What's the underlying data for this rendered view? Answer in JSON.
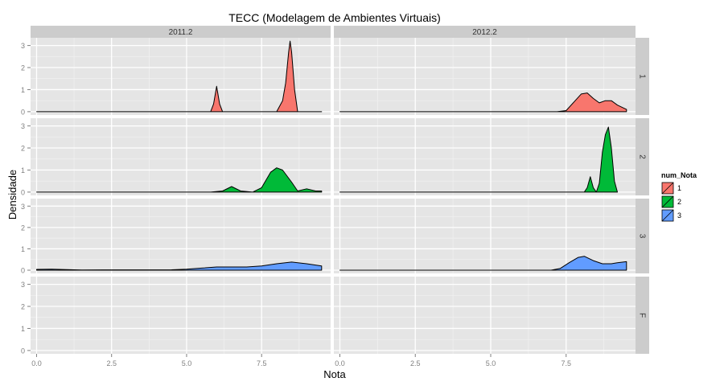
{
  "chart_data": {
    "type": "area",
    "title": "TECC (Modelagem de Ambientes Virtuais)",
    "xlabel": "Nota",
    "ylabel": "Densidade",
    "xlim": [
      -0.2,
      9.8
    ],
    "ylim": [
      -0.15,
      3.35
    ],
    "x_ticks": [
      0,
      2.5,
      5,
      7.5
    ],
    "x_tick_labels": [
      "0.0",
      "2.5",
      "5.0",
      "7.5"
    ],
    "y_ticks": [
      0,
      1,
      2,
      3
    ],
    "y_tick_labels": [
      "0",
      "1",
      "2",
      "3"
    ],
    "grid": true,
    "column_facets": [
      "2011.2",
      "2012.2"
    ],
    "row_facets": [
      "1",
      "2",
      "3",
      "F"
    ],
    "legend": {
      "title": "num_Nota",
      "placement": "right",
      "items": [
        {
          "label": "1",
          "color": "#F8766D"
        },
        {
          "label": "2",
          "color": "#00BA38"
        },
        {
          "label": "3",
          "color": "#619CFF"
        }
      ]
    },
    "panels": [
      {
        "column": "2011.2",
        "row": "1",
        "series": "1",
        "color": "#F8766D",
        "x": [
          0,
          5.0,
          5.8,
          5.9,
          6.0,
          6.1,
          6.2,
          8.0,
          8.2,
          8.3,
          8.4,
          8.45,
          8.5,
          8.6,
          8.7,
          9.5
        ],
        "y": [
          0,
          0,
          0,
          0.35,
          1.15,
          0.35,
          0,
          0,
          0.5,
          1.3,
          2.7,
          3.2,
          2.7,
          1.0,
          0,
          0
        ]
      },
      {
        "column": "2011.2",
        "row": "2",
        "series": "2",
        "color": "#00BA38",
        "x": [
          0,
          5.8,
          6.2,
          6.5,
          6.8,
          7.2,
          7.5,
          7.8,
          8.0,
          8.2,
          8.5,
          8.7,
          9.0,
          9.3,
          9.5
        ],
        "y": [
          0,
          0,
          0.05,
          0.25,
          0.05,
          0,
          0.2,
          0.9,
          1.1,
          1.0,
          0.45,
          0.05,
          0.15,
          0.05,
          0.05
        ]
      },
      {
        "column": "2011.2",
        "row": "3",
        "series": "3",
        "color": "#619CFF",
        "x": [
          0,
          0.5,
          1.5,
          4.5,
          5.0,
          5.5,
          6.0,
          7.0,
          7.5,
          8.0,
          8.5,
          9.0,
          9.5
        ],
        "y": [
          0.04,
          0.05,
          0.01,
          0.02,
          0.05,
          0.1,
          0.15,
          0.15,
          0.2,
          0.3,
          0.38,
          0.3,
          0.2
        ]
      },
      {
        "column": "2012.2",
        "row": "1",
        "series": "1",
        "color": "#F8766D",
        "x": [
          0,
          7.2,
          7.5,
          7.8,
          8.0,
          8.2,
          8.4,
          8.6,
          8.8,
          9.0,
          9.2,
          9.5
        ],
        "y": [
          0,
          0,
          0.05,
          0.5,
          0.8,
          0.85,
          0.6,
          0.4,
          0.5,
          0.5,
          0.3,
          0.1
        ]
      },
      {
        "column": "2012.2",
        "row": "2",
        "series": "2",
        "color": "#00BA38",
        "x": [
          0,
          8.1,
          8.2,
          8.3,
          8.4,
          8.5,
          8.6,
          8.7,
          8.8,
          8.9,
          9.0,
          9.1,
          9.2
        ],
        "y": [
          0,
          0,
          0.2,
          0.7,
          0.2,
          0,
          0.4,
          1.8,
          2.6,
          2.95,
          2.0,
          0.5,
          0
        ]
      },
      {
        "column": "2012.2",
        "row": "3",
        "series": "3",
        "color": "#619CFF",
        "x": [
          0,
          7.0,
          7.3,
          7.6,
          7.9,
          8.1,
          8.4,
          8.7,
          9.0,
          9.2,
          9.5
        ],
        "y": [
          0,
          0,
          0.08,
          0.35,
          0.6,
          0.65,
          0.45,
          0.3,
          0.3,
          0.35,
          0.4
        ]
      }
    ]
  }
}
